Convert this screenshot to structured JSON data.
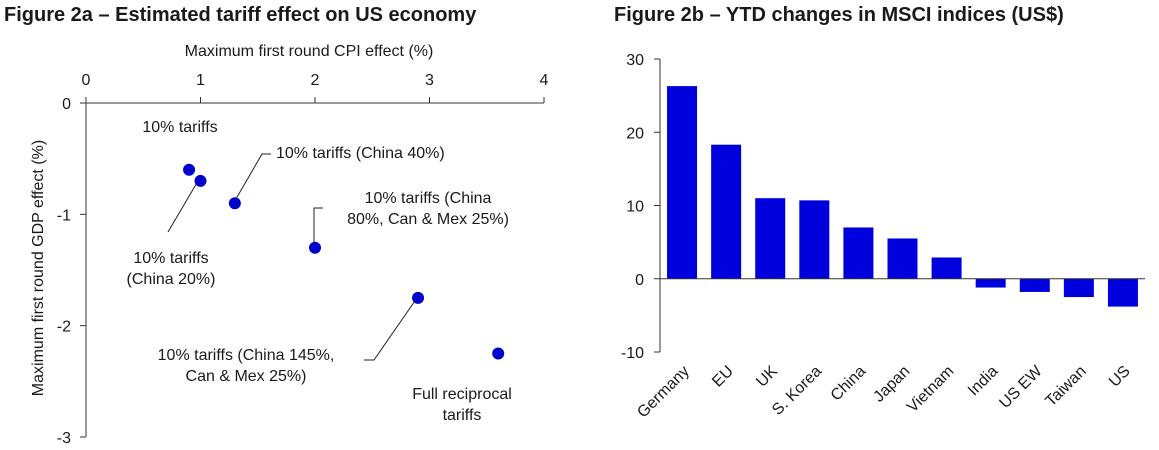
{
  "chart_data": [
    {
      "type": "scatter",
      "title": "Figure 2a – Estimated tariff effect on US economy",
      "xlabel": "Maximum  first round CPI effect (%)",
      "ylabel": "Maximum  first round GDP effect (%)",
      "xlim": [
        0,
        4
      ],
      "ylim": [
        -3,
        0
      ],
      "x_ticks": [
        "0",
        "1",
        "2",
        "3",
        "4"
      ],
      "y_ticks": [
        "0",
        "-1",
        "-2",
        "-3"
      ],
      "marker_color": "#0000cc",
      "points": [
        {
          "x": 0.9,
          "y": -0.6
        },
        {
          "x": 1.0,
          "y": -0.7
        },
        {
          "x": 1.3,
          "y": -0.9
        },
        {
          "x": 2.0,
          "y": -1.3
        },
        {
          "x": 2.9,
          "y": -1.75
        },
        {
          "x": 3.6,
          "y": -2.25
        }
      ],
      "annotations": [
        {
          "lines": [
            "10% tariffs"
          ]
        },
        {
          "lines": [
            "10% tariffs",
            "(China 20%)"
          ]
        },
        {
          "lines": [
            "10% tariffs (China 40%)"
          ]
        },
        {
          "lines": [
            "10% tariffs (China",
            "80%, Can & Mex 25%)"
          ]
        },
        {
          "lines": [
            "10% tariffs (China 145%,",
            "Can & Mex 25%)"
          ]
        },
        {
          "lines": [
            "Full reciprocal",
            "tariffs"
          ]
        }
      ]
    },
    {
      "type": "bar",
      "title": "Figure 2b – YTD changes in MSCI indices (US$)",
      "categories": [
        "Germany",
        "EU",
        "UK",
        "S. Korea",
        "China",
        "Japan",
        "Vietnam",
        "India",
        "US EW",
        "Taiwan",
        "US"
      ],
      "values": [
        26.3,
        18.3,
        11.0,
        10.7,
        7.0,
        5.5,
        2.9,
        -1.2,
        -1.8,
        -2.5,
        -3.8
      ],
      "ylim": [
        -10,
        30
      ],
      "y_ticks": [
        "30",
        "20",
        "10",
        "0",
        "-10"
      ],
      "bar_color": "#0000dd"
    }
  ]
}
